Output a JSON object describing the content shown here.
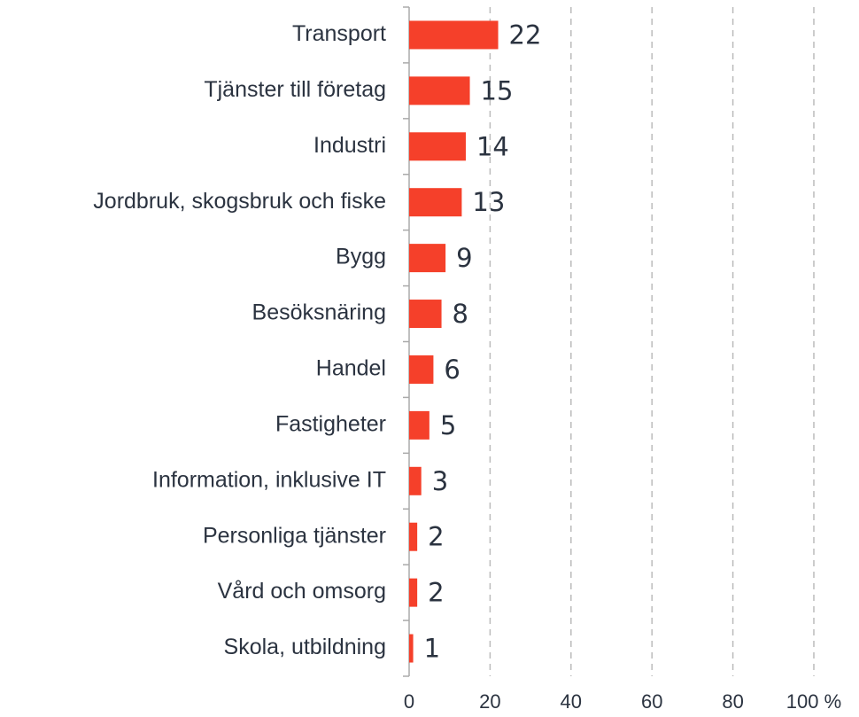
{
  "chart_data": {
    "type": "bar",
    "orientation": "horizontal",
    "categories": [
      "Transport",
      "Tjänster till företag",
      "Industri",
      "Jordbruk, skogsbruk och fiske",
      "Bygg",
      "Besöksnäring",
      "Handel",
      "Fastigheter",
      "Information, inklusive IT",
      "Personliga tjänster",
      "Vård och omsorg",
      "Skola, utbildning"
    ],
    "values": [
      22,
      15,
      14,
      13,
      9,
      8,
      6,
      5,
      3,
      2,
      2,
      1
    ],
    "color": "#f5402a",
    "xlim": [
      0,
      100
    ],
    "xticks": [
      0,
      20,
      40,
      60,
      80,
      {
        "value": 100,
        "label": "100 %"
      }
    ],
    "grid": true
  }
}
